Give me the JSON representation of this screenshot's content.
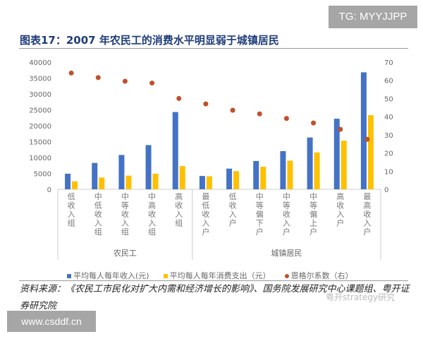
{
  "watermark_top": "TG: MYYJJPP",
  "watermark_bottom": "www.csddf.cn",
  "watermark_wechat": "粤开strategy研究",
  "source": "资料来源：《农民工市民化对扩大内需和经济增长的影响》、国务院发展研究中心课题组、粤开证券研究院",
  "chart_data": {
    "type": "bar",
    "title": "图表17：2007 年农民工的消费水平明显弱于城镇居民",
    "categories": [
      "低收入组",
      "中低收入组",
      "中等收入组",
      "中高收入组",
      "高收入组",
      "最低收入户",
      "低收入户",
      "中等偏下户",
      "中等收入户",
      "中等偏上户",
      "高收入户",
      "最高收入户"
    ],
    "groups": [
      {
        "label": "农民工",
        "count": 5
      },
      {
        "label": "城镇居民",
        "count": 7
      }
    ],
    "series": [
      {
        "name": "平均每人每年收入(元)",
        "type": "bar",
        "axis": "left",
        "color": "#4472c4",
        "values": [
          4900,
          8300,
          10800,
          13900,
          24300,
          4200,
          6500,
          8900,
          12000,
          16300,
          22200,
          36800
        ]
      },
      {
        "name": "平均每人每年消费支出（元）",
        "type": "bar",
        "axis": "left",
        "color": "#ffc000",
        "values": [
          2500,
          3700,
          4300,
          4900,
          7300,
          4100,
          5700,
          7100,
          9000,
          11600,
          15300,
          23300
        ]
      },
      {
        "name": "恩格尔系数（右）",
        "type": "scatter",
        "axis": "right",
        "color": "#c0502a",
        "values": [
          64,
          61.5,
          59.5,
          58.5,
          50,
          47,
          43.5,
          41.5,
          39,
          36.5,
          33,
          27.5
        ]
      }
    ],
    "ylim": [
      0,
      40000
    ],
    "yticks": [
      0,
      5000,
      10000,
      15000,
      20000,
      25000,
      30000,
      35000,
      40000
    ],
    "y2lim": [
      0,
      70
    ],
    "y2ticks": [
      0,
      10,
      20,
      30,
      40,
      50,
      60,
      70
    ],
    "grid": false,
    "legend": "bottom"
  }
}
